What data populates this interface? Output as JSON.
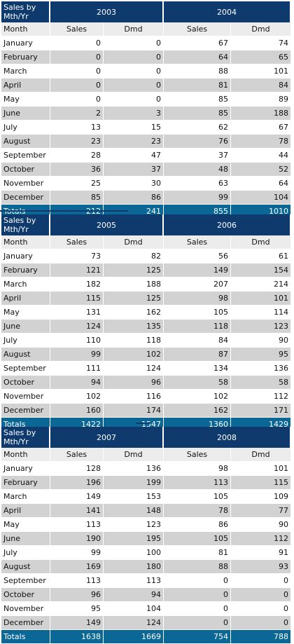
{
  "header_title": "Sales by Mth/Yr",
  "columns": {
    "month": "Month",
    "sales": "Sales",
    "dmd": "Dmd",
    "totals": "Totals"
  },
  "months": [
    "January",
    "February",
    "March",
    "April",
    "May",
    "June",
    "July",
    "August",
    "September",
    "October",
    "November",
    "December"
  ],
  "blocks": [
    {
      "years": [
        {
          "year": "2003",
          "sales": [
            0,
            0,
            0,
            0,
            0,
            2,
            13,
            23,
            28,
            36,
            25,
            85
          ],
          "dmd": [
            0,
            0,
            0,
            0,
            0,
            3,
            15,
            23,
            47,
            37,
            30,
            86
          ],
          "total_sales": 212,
          "total_dmd": 241
        },
        {
          "year": "2004",
          "sales": [
            67,
            64,
            88,
            81,
            85,
            85,
            62,
            76,
            37,
            48,
            63,
            99
          ],
          "dmd": [
            74,
            65,
            101,
            84,
            89,
            188,
            67,
            78,
            44,
            52,
            64,
            104
          ],
          "total_sales": 855,
          "total_dmd": 1010
        }
      ]
    },
    {
      "years": [
        {
          "year": "2005",
          "sales": [
            73,
            121,
            182,
            115,
            131,
            124,
            110,
            99,
            111,
            94,
            102,
            160
          ],
          "dmd": [
            82,
            125,
            188,
            125,
            162,
            135,
            118,
            102,
            124,
            96,
            116,
            174
          ],
          "total_sales": 1422,
          "total_dmd": 1547
        },
        {
          "year": "2006",
          "sales": [
            56,
            149,
            207,
            98,
            105,
            118,
            84,
            87,
            134,
            58,
            102,
            162
          ],
          "dmd": [
            61,
            154,
            214,
            101,
            114,
            123,
            90,
            95,
            136,
            58,
            112,
            171
          ],
          "total_sales": 1360,
          "total_dmd": 1429
        }
      ]
    },
    {
      "years": [
        {
          "year": "2007",
          "sales": [
            128,
            196,
            149,
            141,
            113,
            190,
            99,
            169,
            113,
            96,
            95,
            149
          ],
          "dmd": [
            136,
            199,
            153,
            148,
            123,
            195,
            100,
            180,
            113,
            94,
            104,
            124
          ],
          "total_sales": 1638,
          "total_dmd": 1669
        },
        {
          "year": "2008",
          "sales": [
            98,
            113,
            105,
            78,
            86,
            105,
            81,
            88,
            0,
            0,
            0,
            0
          ],
          "dmd": [
            101,
            115,
            109,
            77,
            90,
            112,
            91,
            93,
            0,
            0,
            0,
            0
          ],
          "total_sales": 754,
          "total_dmd": 788
        }
      ]
    }
  ],
  "colors": {
    "header": "#0f3a6e",
    "totals": "#0a6796",
    "row_alt": "#d2d2d2"
  }
}
